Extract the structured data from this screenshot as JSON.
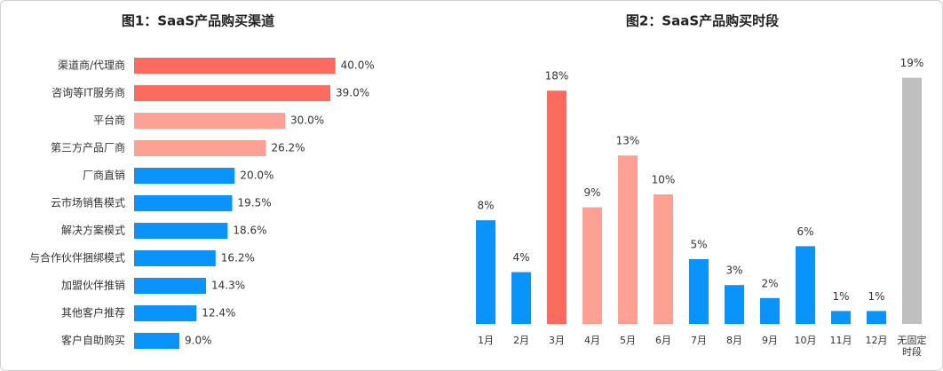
{
  "chart_data": [
    {
      "type": "hbar",
      "title": "图1：SaaS产品购买渠道",
      "categories": [
        "渠道商/代理商",
        "咨询等IT服务商",
        "平台商",
        "第三方产品厂商",
        "厂商直销",
        "云市场销售模式",
        "解决方案模式",
        "与合作伙伴捆绑模式",
        "加盟伙伴推销",
        "其他客户推荐",
        "客户自助购买"
      ],
      "values": [
        40.0,
        39.0,
        30.0,
        26.2,
        20.0,
        19.5,
        18.6,
        16.2,
        14.3,
        12.4,
        9.0
      ],
      "value_labels": [
        "40.0%",
        "39.0%",
        "30.0%",
        "26.2%",
        "20.0%",
        "19.5%",
        "18.6%",
        "16.2%",
        "14.3%",
        "12.4%",
        "9.0%"
      ],
      "colors": [
        "#fc6b5d",
        "#fc6b5d",
        "#fd9f93",
        "#fd9f93",
        "#0a94fb",
        "#0a94fb",
        "#0a94fb",
        "#0a94fb",
        "#0a94fb",
        "#0a94fb",
        "#0a94fb"
      ],
      "xlim": [
        0,
        48
      ]
    },
    {
      "type": "bar",
      "title": "图2：SaaS产品购买时段",
      "categories": [
        "1月",
        "2月",
        "3月",
        "4月",
        "5月",
        "6月",
        "7月",
        "8月",
        "9月",
        "10月",
        "11月",
        "12月",
        "无固定时段"
      ],
      "values": [
        8,
        4,
        18,
        9,
        13,
        10,
        5,
        3,
        2,
        6,
        1,
        1,
        19
      ],
      "value_labels": [
        "8%",
        "4%",
        "18%",
        "9%",
        "13%",
        "10%",
        "5%",
        "3%",
        "2%",
        "6%",
        "1%",
        "1%",
        "19%"
      ],
      "colors": [
        "#0a94fb",
        "#0a94fb",
        "#fc6b5d",
        "#fd9f93",
        "#fd9f93",
        "#fd9f93",
        "#0a94fb",
        "#0a94fb",
        "#0a94fb",
        "#0a94fb",
        "#0a94fb",
        "#0a94fb",
        "#bfbfbf"
      ],
      "ylim": [
        0,
        20
      ]
    }
  ]
}
